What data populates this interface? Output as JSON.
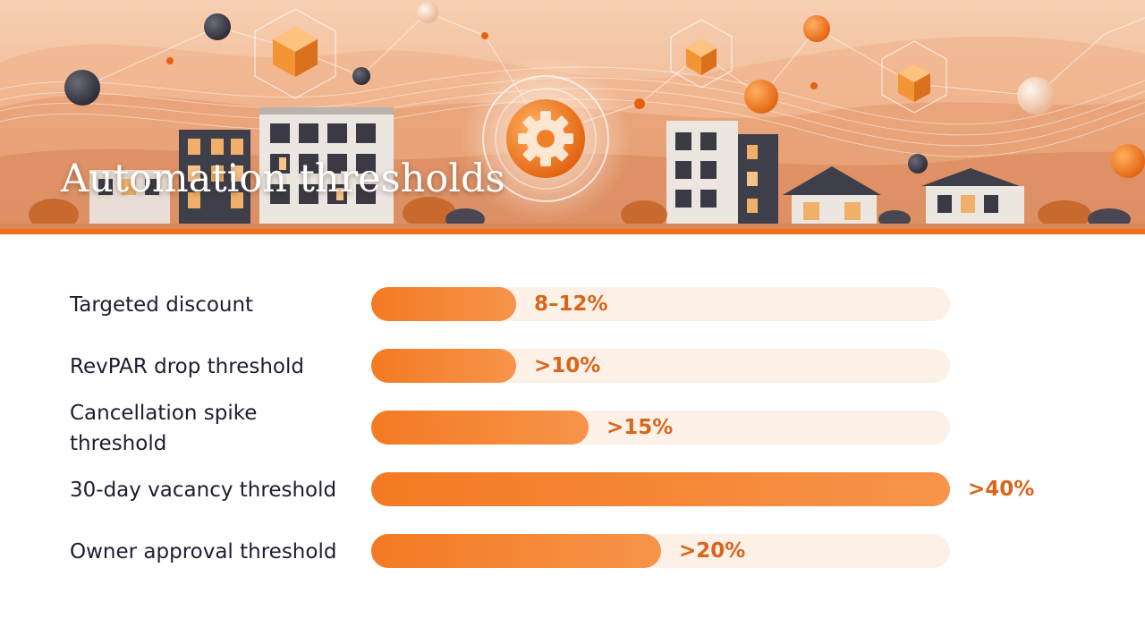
{
  "title": "Automation thresholds",
  "colors": {
    "accent": "#f47a22",
    "track": "#fdf0e6",
    "value_text": "#d9651b",
    "label_text": "#1c1e30"
  },
  "icons": {
    "hero": "gear-icon"
  },
  "chart_data": {
    "type": "bar",
    "orientation": "horizontal",
    "title": "",
    "xlabel": "",
    "ylabel": "",
    "xlim": [
      0,
      40
    ],
    "grid": false,
    "legend": "none",
    "categories": [
      "Targeted discount",
      "RevPAR drop threshold",
      "Cancellation spike threshold",
      "30-day vacancy threshold",
      "Owner approval threshold"
    ],
    "values": [
      10,
      10,
      15,
      40,
      20
    ],
    "value_labels": [
      "8–12%",
      ">10%",
      ">15%",
      ">40%",
      ">20%"
    ]
  }
}
